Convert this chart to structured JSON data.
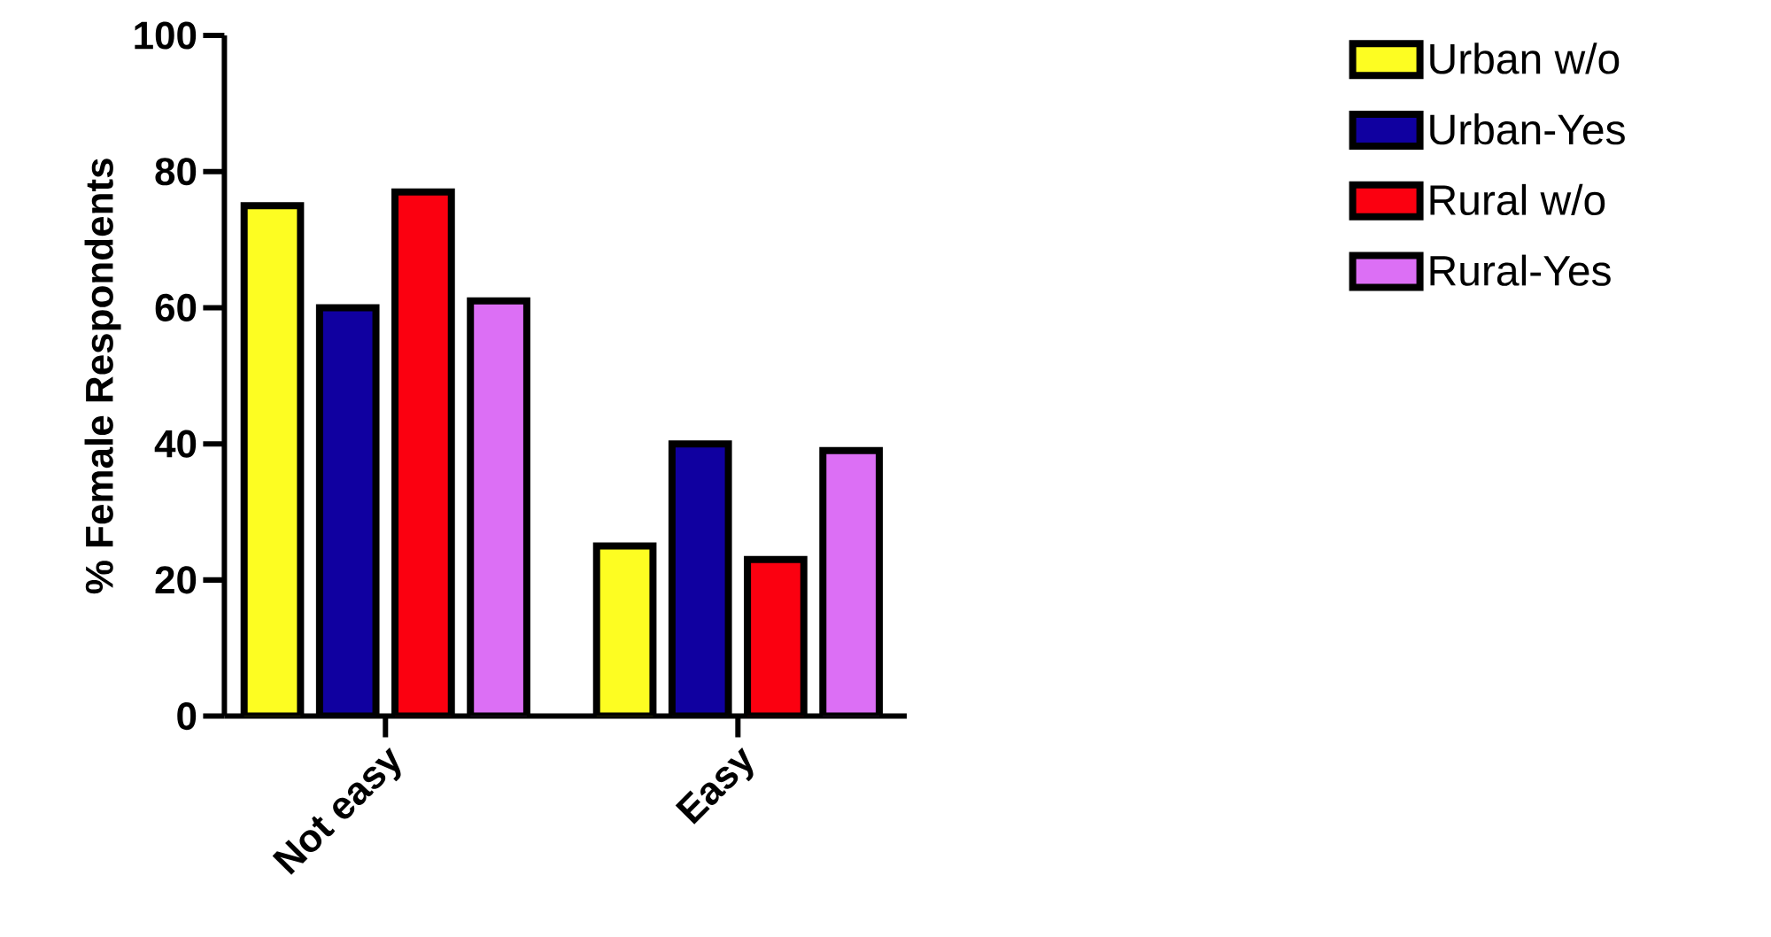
{
  "chart_data": {
    "type": "bar",
    "ylabel": "% Female Respondents",
    "categories": [
      "Not easy",
      "Easy"
    ],
    "series": [
      {
        "name": "Urban w/o",
        "color": "#fdfd22",
        "values": [
          75,
          25
        ]
      },
      {
        "name": "Urban-Yes",
        "color": "#1000a0",
        "values": [
          60,
          40
        ]
      },
      {
        "name": "Rural w/o",
        "color": "#fb0010",
        "values": [
          77,
          23
        ]
      },
      {
        "name": "Rural-Yes",
        "color": "#dc6ff5",
        "values": [
          61,
          39
        ]
      }
    ],
    "ylim": [
      0,
      100
    ],
    "yticks": [
      0,
      20,
      40,
      60,
      80,
      100
    ],
    "grid": false,
    "legend": "right"
  }
}
